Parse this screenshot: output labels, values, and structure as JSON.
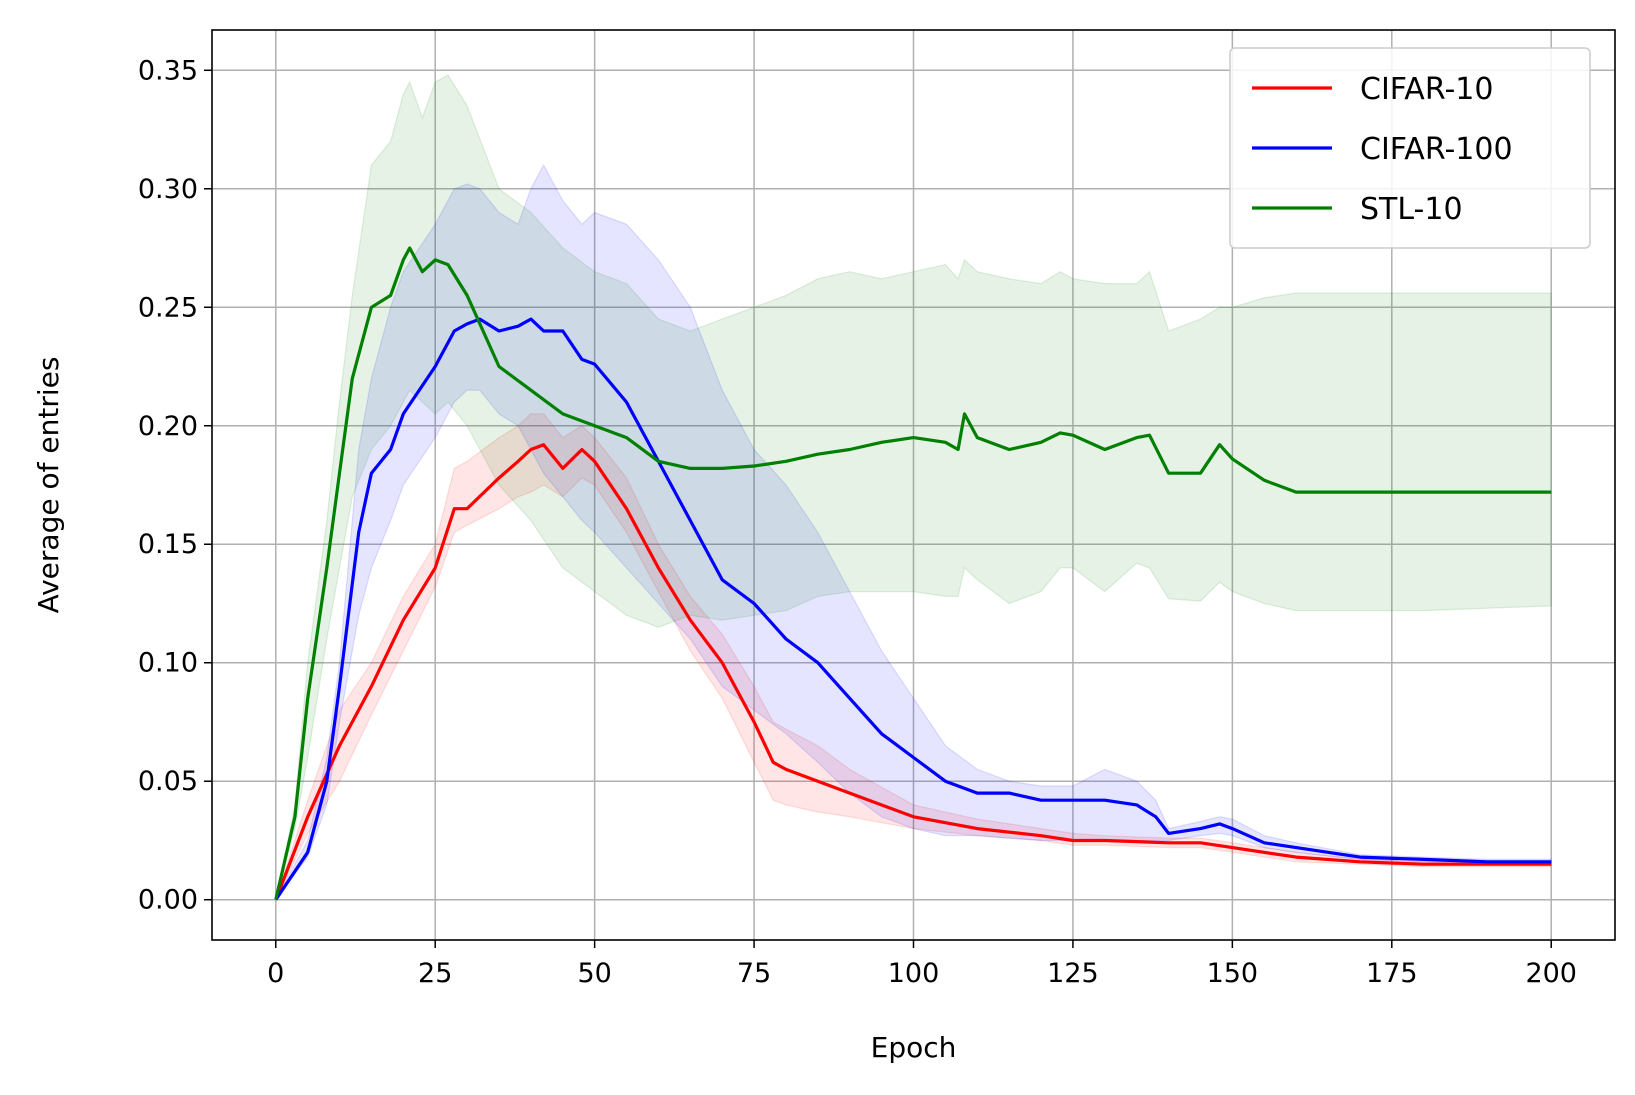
{
  "chart_data": {
    "type": "line",
    "title": "",
    "xlabel": "Epoch",
    "ylabel": "Average of entries",
    "xlim": [
      -10,
      210
    ],
    "ylim": [
      -0.017,
      0.367
    ],
    "xticks": [
      0,
      25,
      50,
      75,
      100,
      125,
      150,
      175,
      200
    ],
    "xtick_labels": [
      "0",
      "25",
      "50",
      "75",
      "100",
      "125",
      "150",
      "175",
      "200"
    ],
    "yticks": [
      0.0,
      0.05,
      0.1,
      0.15,
      0.2,
      0.25,
      0.3,
      0.35
    ],
    "ytick_labels": [
      "0.00",
      "0.05",
      "0.10",
      "0.15",
      "0.20",
      "0.25",
      "0.30",
      "0.35"
    ],
    "grid": true,
    "legend_position": "top-right",
    "series": [
      {
        "name": "CIFAR-10",
        "color": "#ff0000",
        "x": [
          0,
          5,
          10,
          15,
          20,
          25,
          28,
          30,
          35,
          38,
          40,
          42,
          45,
          48,
          50,
          55,
          60,
          65,
          70,
          75,
          78,
          80,
          85,
          90,
          100,
          110,
          120,
          125,
          130,
          140,
          145,
          150,
          160,
          170,
          180,
          190,
          200
        ],
        "y": [
          0.0,
          0.035,
          0.065,
          0.09,
          0.118,
          0.14,
          0.165,
          0.165,
          0.178,
          0.185,
          0.19,
          0.192,
          0.182,
          0.19,
          0.185,
          0.165,
          0.14,
          0.118,
          0.1,
          0.075,
          0.058,
          0.055,
          0.05,
          0.045,
          0.035,
          0.03,
          0.027,
          0.025,
          0.025,
          0.024,
          0.024,
          0.022,
          0.018,
          0.016,
          0.015,
          0.015,
          0.015
        ],
        "lower": [
          0.0,
          0.028,
          0.05,
          0.078,
          0.105,
          0.132,
          0.155,
          0.158,
          0.165,
          0.17,
          0.172,
          0.175,
          0.17,
          0.178,
          0.175,
          0.155,
          0.13,
          0.105,
          0.085,
          0.058,
          0.042,
          0.04,
          0.037,
          0.035,
          0.03,
          0.027,
          0.025,
          0.023,
          0.023,
          0.022,
          0.022,
          0.02,
          0.016,
          0.015,
          0.014,
          0.014,
          0.014
        ],
        "upper": [
          0.0,
          0.042,
          0.08,
          0.1,
          0.128,
          0.15,
          0.182,
          0.185,
          0.195,
          0.2,
          0.205,
          0.205,
          0.195,
          0.2,
          0.195,
          0.178,
          0.15,
          0.128,
          0.112,
          0.09,
          0.075,
          0.072,
          0.065,
          0.055,
          0.04,
          0.034,
          0.03,
          0.028,
          0.027,
          0.026,
          0.026,
          0.024,
          0.02,
          0.017,
          0.016,
          0.016,
          0.016
        ]
      },
      {
        "name": "CIFAR-100",
        "color": "#0000ff",
        "x": [
          0,
          5,
          8,
          10,
          13,
          15,
          18,
          20,
          25,
          28,
          30,
          32,
          35,
          38,
          40,
          42,
          45,
          48,
          50,
          55,
          60,
          65,
          70,
          75,
          80,
          85,
          90,
          95,
          100,
          105,
          110,
          115,
          120,
          125,
          130,
          135,
          138,
          140,
          145,
          148,
          150,
          155,
          160,
          170,
          180,
          190,
          200
        ],
        "y": [
          0.0,
          0.02,
          0.05,
          0.09,
          0.155,
          0.18,
          0.19,
          0.205,
          0.225,
          0.24,
          0.243,
          0.245,
          0.24,
          0.242,
          0.245,
          0.24,
          0.24,
          0.228,
          0.226,
          0.21,
          0.185,
          0.16,
          0.135,
          0.125,
          0.11,
          0.1,
          0.085,
          0.07,
          0.06,
          0.05,
          0.045,
          0.045,
          0.042,
          0.042,
          0.042,
          0.04,
          0.035,
          0.028,
          0.03,
          0.032,
          0.03,
          0.024,
          0.022,
          0.018,
          0.017,
          0.016,
          0.016
        ],
        "lower": [
          0.0,
          0.018,
          0.04,
          0.075,
          0.12,
          0.14,
          0.16,
          0.175,
          0.195,
          0.21,
          0.215,
          0.215,
          0.205,
          0.2,
          0.19,
          0.18,
          0.17,
          0.16,
          0.155,
          0.14,
          0.125,
          0.11,
          0.09,
          0.08,
          0.07,
          0.058,
          0.045,
          0.035,
          0.03,
          0.027,
          0.027,
          0.026,
          0.025,
          0.025,
          0.025,
          0.025,
          0.025,
          0.025,
          0.027,
          0.028,
          0.027,
          0.022,
          0.02,
          0.017,
          0.016,
          0.015,
          0.015
        ],
        "upper": [
          0.0,
          0.025,
          0.06,
          0.1,
          0.19,
          0.22,
          0.25,
          0.265,
          0.285,
          0.3,
          0.302,
          0.3,
          0.29,
          0.285,
          0.3,
          0.31,
          0.295,
          0.285,
          0.29,
          0.285,
          0.27,
          0.25,
          0.215,
          0.19,
          0.175,
          0.155,
          0.13,
          0.105,
          0.085,
          0.065,
          0.055,
          0.05,
          0.048,
          0.048,
          0.055,
          0.05,
          0.042,
          0.03,
          0.033,
          0.035,
          0.034,
          0.027,
          0.024,
          0.019,
          0.018,
          0.017,
          0.017
        ]
      },
      {
        "name": "STL-10",
        "color": "#008000",
        "x": [
          0,
          3,
          5,
          8,
          10,
          12,
          15,
          18,
          20,
          21,
          23,
          25,
          27,
          30,
          35,
          40,
          45,
          50,
          55,
          60,
          65,
          70,
          75,
          80,
          85,
          90,
          95,
          100,
          105,
          107,
          108,
          110,
          115,
          120,
          123,
          125,
          130,
          135,
          137,
          140,
          145,
          148,
          150,
          155,
          160,
          170,
          180,
          190,
          200
        ],
        "y": [
          0.0,
          0.035,
          0.085,
          0.14,
          0.18,
          0.22,
          0.25,
          0.255,
          0.27,
          0.275,
          0.265,
          0.27,
          0.268,
          0.255,
          0.225,
          0.215,
          0.205,
          0.2,
          0.195,
          0.185,
          0.182,
          0.182,
          0.183,
          0.185,
          0.188,
          0.19,
          0.193,
          0.195,
          0.193,
          0.19,
          0.205,
          0.195,
          0.19,
          0.193,
          0.197,
          0.196,
          0.19,
          0.195,
          0.196,
          0.18,
          0.18,
          0.192,
          0.186,
          0.177,
          0.172,
          0.172,
          0.172,
          0.172,
          0.172
        ],
        "lower": [
          0.0,
          0.03,
          0.06,
          0.11,
          0.14,
          0.17,
          0.19,
          0.2,
          0.21,
          0.215,
          0.21,
          0.205,
          0.21,
          0.2,
          0.175,
          0.16,
          0.14,
          0.13,
          0.12,
          0.115,
          0.12,
          0.118,
          0.12,
          0.122,
          0.128,
          0.13,
          0.13,
          0.13,
          0.128,
          0.128,
          0.14,
          0.135,
          0.125,
          0.13,
          0.14,
          0.14,
          0.13,
          0.142,
          0.14,
          0.127,
          0.126,
          0.134,
          0.13,
          0.125,
          0.122,
          0.122,
          0.122,
          0.123,
          0.124
        ],
        "upper": [
          0.0,
          0.04,
          0.1,
          0.16,
          0.21,
          0.255,
          0.31,
          0.32,
          0.34,
          0.345,
          0.33,
          0.345,
          0.348,
          0.335,
          0.3,
          0.29,
          0.275,
          0.265,
          0.26,
          0.245,
          0.24,
          0.245,
          0.25,
          0.255,
          0.262,
          0.265,
          0.262,
          0.265,
          0.268,
          0.262,
          0.27,
          0.265,
          0.262,
          0.26,
          0.265,
          0.262,
          0.26,
          0.26,
          0.265,
          0.24,
          0.245,
          0.25,
          0.25,
          0.254,
          0.256,
          0.256,
          0.256,
          0.256,
          0.256
        ]
      }
    ]
  }
}
